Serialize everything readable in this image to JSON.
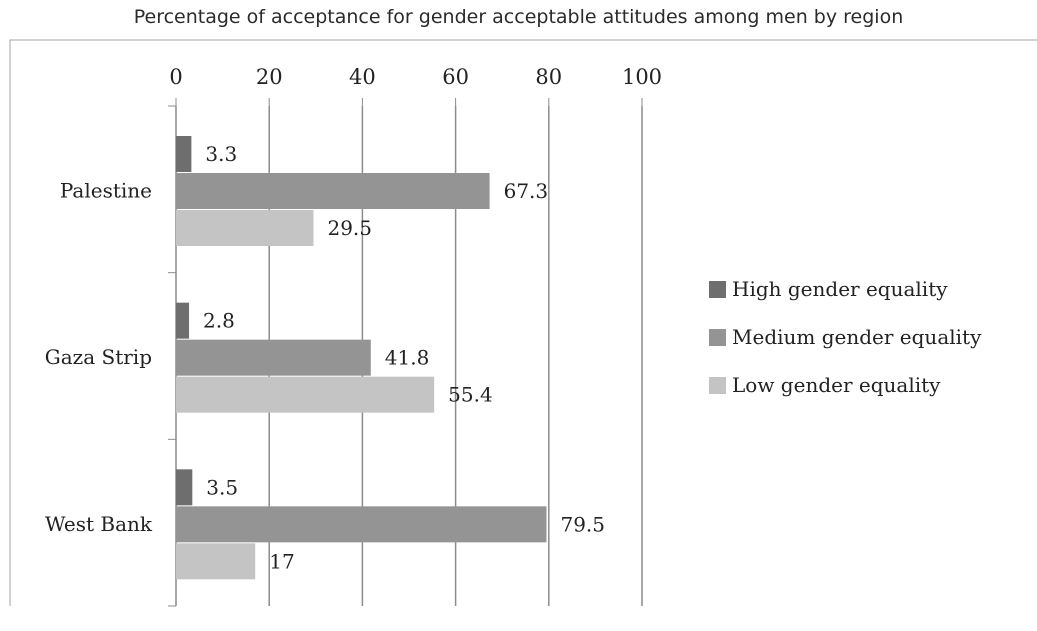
{
  "chart_data": {
    "type": "bar",
    "orientation": "horizontal",
    "title": "Percentage of acceptance for gender acceptable attitudes among men by region",
    "xlim": [
      0,
      100
    ],
    "x_ticks": [
      "0",
      "20",
      "40",
      "60",
      "80",
      "100"
    ],
    "x_axis_position": "top",
    "grid": true,
    "legend_position": "right",
    "categories": [
      "Palestine",
      "Gaza Strip",
      "West Bank"
    ],
    "series": [
      {
        "name": "High gender equality",
        "color": "#6e6e6e",
        "values": [
          3.3,
          2.8,
          3.5
        ],
        "labels": [
          "3.3",
          "2.8",
          "3.5"
        ]
      },
      {
        "name": "Medium gender equality",
        "color": "#949494",
        "values": [
          67.3,
          41.8,
          79.5
        ],
        "labels": [
          "67.3",
          "41.8",
          "79.5"
        ]
      },
      {
        "name": "Low gender equality",
        "color": "#c4c4c4",
        "values": [
          29.5,
          55.4,
          17
        ],
        "labels": [
          "29.5",
          "55.4",
          "17"
        ]
      }
    ]
  }
}
